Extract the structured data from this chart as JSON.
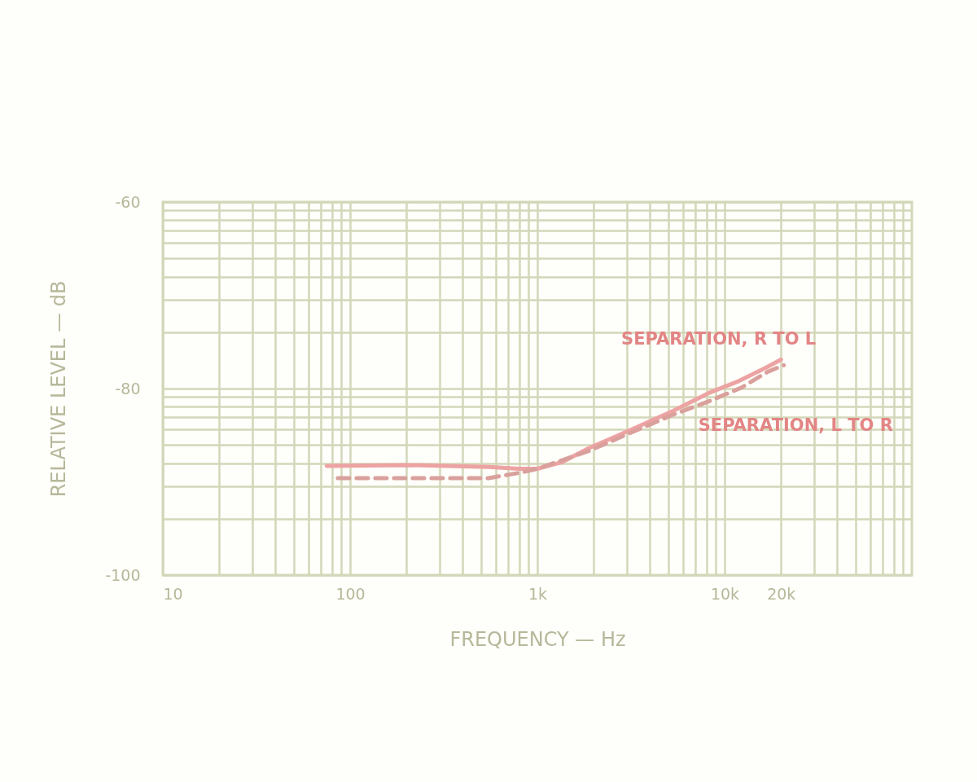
{
  "chart_data": {
    "type": "line",
    "xlabel": "FREQUENCY — Hz",
    "ylabel": "RELATIVE LEVEL — dB",
    "log": "x",
    "grid": true,
    "xlim": [
      10,
      100000
    ],
    "ylim": [
      -100,
      -60
    ],
    "xticks": [
      10,
      {
        "value": 20,
        "label": null
      },
      {
        "value": 30,
        "label": null
      },
      {
        "value": 40,
        "label": null
      },
      {
        "value": 50,
        "label": null
      },
      {
        "value": 60,
        "label": null
      },
      {
        "value": 70,
        "label": null
      },
      {
        "value": 80,
        "label": null
      },
      {
        "value": 90,
        "label": null
      },
      100,
      {
        "value": 200,
        "label": null
      },
      {
        "value": 300,
        "label": null
      },
      {
        "value": 400,
        "label": null
      },
      {
        "value": 500,
        "label": null
      },
      {
        "value": 600,
        "label": null
      },
      {
        "value": 700,
        "label": null
      },
      {
        "value": 800,
        "label": null
      },
      {
        "value": 900,
        "label": null
      },
      {
        "value": 1000,
        "label": "1k"
      },
      {
        "value": 2000,
        "label": null
      },
      {
        "value": 3000,
        "label": null
      },
      {
        "value": 4000,
        "label": null
      },
      {
        "value": 5000,
        "label": null
      },
      {
        "value": 6000,
        "label": null
      },
      {
        "value": 7000,
        "label": null
      },
      {
        "value": 8000,
        "label": null
      },
      {
        "value": 9000,
        "label": null
      },
      {
        "value": 10000,
        "label": "10k"
      },
      {
        "value": 20000,
        "label": "20k"
      },
      {
        "value": 30000,
        "label": null
      },
      {
        "value": 40000,
        "label": null
      },
      {
        "value": 50000,
        "label": null
      },
      {
        "value": 60000,
        "label": null
      },
      {
        "value": 70000,
        "label": null
      },
      {
        "value": 80000,
        "label": null
      },
      {
        "value": 90000,
        "label": null
      }
    ],
    "yticks": [
      -100,
      {
        "value": -94,
        "label": null
      },
      {
        "value": -90.5,
        "label": null
      },
      {
        "value": -88,
        "label": null
      },
      {
        "value": -86,
        "label": null
      },
      {
        "value": -84.4,
        "label": null
      },
      {
        "value": -83.1,
        "label": null
      },
      {
        "value": -81.9,
        "label": null
      },
      {
        "value": -80.9,
        "label": null
      },
      -80,
      {
        "value": -74,
        "label": null
      },
      {
        "value": -70.5,
        "label": null
      },
      {
        "value": -68,
        "label": null
      },
      {
        "value": -66,
        "label": null
      },
      {
        "value": -64.4,
        "label": null
      },
      {
        "value": -63.1,
        "label": null
      },
      {
        "value": -61.9,
        "label": null
      },
      {
        "value": -60.9,
        "label": null
      },
      -60
    ],
    "series": [
      {
        "name": "SEPARATION, R TO L",
        "color": "#eda3a3",
        "line_style": "solid",
        "x": [
          75,
          200,
          550,
          800,
          1000,
          1350,
          1880,
          3100,
          5300,
          8400,
          11900,
          16500,
          20000
        ],
        "values": [
          -88.3,
          -88.2,
          -88.4,
          -88.6,
          -88.6,
          -87.9,
          -86.4,
          -84.5,
          -82.4,
          -80.4,
          -79.2,
          -77.8,
          -76.9
        ]
      },
      {
        "name": "SEPARATION, L TO R",
        "color": "#d9a09c",
        "line_style": "dashed",
        "x": [
          86,
          200,
          550,
          820,
          1000,
          1880,
          3100,
          5300,
          8400,
          12300,
          17000,
          20700
        ],
        "values": [
          -89.6,
          -89.6,
          -89.6,
          -89.0,
          -88.6,
          -86.7,
          -84.8,
          -82.8,
          -81.3,
          -79.9,
          -78.2,
          -77.5
        ]
      }
    ]
  }
}
